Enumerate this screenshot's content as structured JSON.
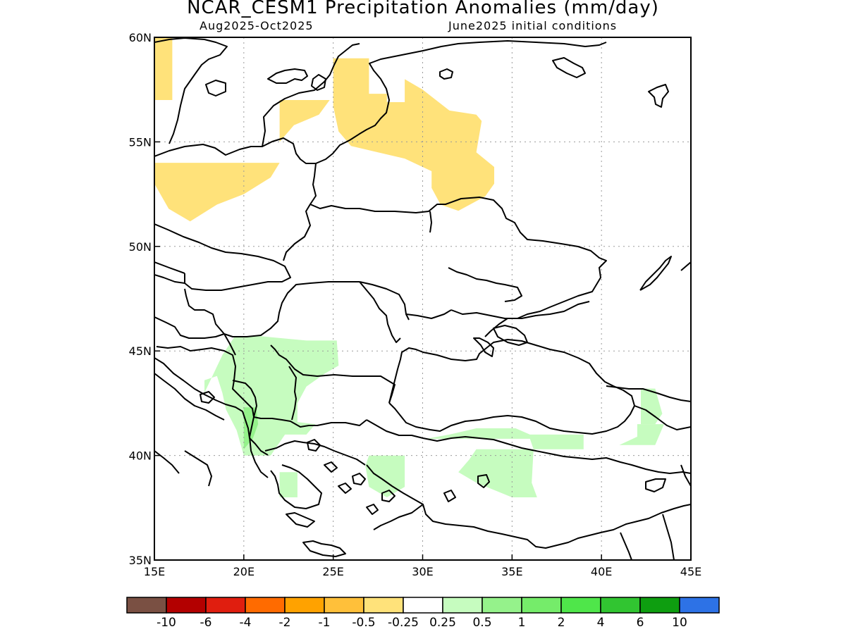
{
  "title": "NCAR_CESM1 Precipitation Anomalies (mm/day)",
  "subtitle_left": "Aug2025-Oct2025",
  "subtitle_right": "June2025 initial conditions",
  "axes": {
    "lon_ticks": [
      "15E",
      "20E",
      "25E",
      "30E",
      "35E",
      "40E",
      "45E"
    ],
    "lat_ticks": [
      "60N",
      "55N",
      "50N",
      "45N",
      "40N",
      "35N"
    ],
    "lon_range": [
      15,
      45
    ],
    "lat_range": [
      35,
      60
    ],
    "grid": "dotted"
  },
  "colorbar": {
    "colors": [
      "#7a5043",
      "#b30000",
      "#e01e0f",
      "#ff6b00",
      "#ffa200",
      "#ffc03a",
      "#ffe27a",
      "#ffffff",
      "#c6fcbf",
      "#95f28b",
      "#75ec6a",
      "#4fe64a",
      "#31c531",
      "#0e9e10",
      "#2d72e6"
    ],
    "labels": [
      "-10",
      "-6",
      "-4",
      "-2",
      "-1",
      "-0.5",
      "-0.25",
      "0.25",
      "0.5",
      "1",
      "2",
      "4",
      "6",
      "10"
    ]
  },
  "anomaly_regions": [
    {
      "category": "-0.5 to -0.25",
      "color": "#ffe27a",
      "pts": [
        [
          15,
          60
        ],
        [
          16,
          60
        ],
        [
          16,
          57
        ],
        [
          15,
          57
        ]
      ]
    },
    {
      "category": "-0.5 to -0.25",
      "color": "#ffe27a",
      "pts": [
        [
          15,
          54
        ],
        [
          22,
          54
        ],
        [
          21.5,
          53.3
        ],
        [
          20,
          52.5
        ],
        [
          18.5,
          52
        ],
        [
          17,
          51.2
        ],
        [
          15.8,
          51.8
        ],
        [
          15,
          53
        ]
      ]
    },
    {
      "category": "-0.5 to -0.25",
      "color": "#ffe27a",
      "pts": [
        [
          22,
          57
        ],
        [
          24.8,
          57
        ],
        [
          24.2,
          56.3
        ],
        [
          22.8,
          55.8
        ],
        [
          22,
          55
        ]
      ]
    },
    {
      "category": "-0.5 to -0.25",
      "color": "#ffe27a",
      "pts": [
        [
          25,
          59
        ],
        [
          27,
          59
        ],
        [
          27,
          57.3
        ],
        [
          28,
          57.3
        ],
        [
          28,
          56.9
        ],
        [
          29,
          56.9
        ],
        [
          29,
          58
        ],
        [
          30,
          57.5
        ],
        [
          31.5,
          56.5
        ],
        [
          33,
          56.3
        ],
        [
          33.3,
          56
        ],
        [
          33,
          54.5
        ],
        [
          34,
          53.8
        ],
        [
          34,
          53
        ],
        [
          33.5,
          52.4
        ],
        [
          32,
          51.7
        ],
        [
          31,
          52
        ],
        [
          30.5,
          52.8
        ],
        [
          30.5,
          53.6
        ],
        [
          29,
          54.2
        ],
        [
          27.5,
          54.5
        ],
        [
          26,
          54.8
        ],
        [
          25.3,
          55.5
        ],
        [
          25,
          56.7
        ]
      ]
    },
    {
      "category": "0.25 to 0.5",
      "color": "#c6fcbf",
      "pts": [
        [
          18.8,
          44.8
        ],
        [
          19.5,
          45.7
        ],
        [
          21,
          45.7
        ],
        [
          23.5,
          45.5
        ],
        [
          25.2,
          45.5
        ],
        [
          25.3,
          44.3
        ],
        [
          24.5,
          43.9
        ],
        [
          23.5,
          43.3
        ],
        [
          23,
          42.5
        ],
        [
          23,
          41.6
        ],
        [
          24,
          41.5
        ],
        [
          23.5,
          41
        ],
        [
          22.3,
          41
        ],
        [
          21.5,
          40
        ],
        [
          20,
          40
        ],
        [
          19.6,
          41.2
        ],
        [
          19,
          42.2
        ],
        [
          18.8,
          43
        ],
        [
          18.5,
          43.8
        ],
        [
          17.8,
          43.6
        ],
        [
          17.8,
          43
        ]
      ]
    },
    {
      "category": "0.5 to 1",
      "color": "#95f28b",
      "pts": [
        [
          20,
          42.3
        ],
        [
          20.7,
          42.3
        ],
        [
          20.8,
          41.5
        ],
        [
          20.5,
          40.8
        ],
        [
          20,
          40.3
        ]
      ]
    },
    {
      "category": "0.25 to 0.5",
      "color": "#c6fcbf",
      "pts": [
        [
          22,
          39.2
        ],
        [
          23,
          39.2
        ],
        [
          23,
          38
        ],
        [
          22,
          38
        ]
      ]
    },
    {
      "category": "0.25 to 0.5",
      "color": "#c6fcbf",
      "pts": [
        [
          27,
          40
        ],
        [
          29,
          40
        ],
        [
          29,
          38.5
        ],
        [
          28,
          38
        ],
        [
          27,
          38.5
        ],
        [
          26.8,
          39.5
        ]
      ]
    },
    {
      "category": "0.25 to 0.5",
      "color": "#c6fcbf",
      "pts": [
        [
          30.2,
          40.8
        ],
        [
          36,
          40.8
        ],
        [
          36.2,
          40.3
        ],
        [
          39,
          40.3
        ],
        [
          39,
          41
        ],
        [
          36,
          41
        ],
        [
          35.2,
          41.3
        ],
        [
          33,
          41.3
        ],
        [
          31.5,
          41
        ],
        [
          30.2,
          40.8
        ]
      ]
    },
    {
      "category": "0.25 to 0.5",
      "color": "#c6fcbf",
      "pts": [
        [
          33,
          40.3
        ],
        [
          36.2,
          40.3
        ],
        [
          36.1,
          38.7
        ],
        [
          36.4,
          38
        ],
        [
          35,
          38
        ],
        [
          33,
          38.7
        ],
        [
          32,
          39.2
        ],
        [
          32.6,
          39.8
        ]
      ]
    },
    {
      "category": "0.25 to 0.5",
      "color": "#c6fcbf",
      "pts": [
        [
          42,
          41.5
        ],
        [
          43.5,
          41.5
        ],
        [
          43,
          40.5
        ],
        [
          41,
          40.5
        ],
        [
          42,
          40.9
        ]
      ]
    },
    {
      "category": "0.25 to 0.5",
      "color": "#c6fcbf",
      "pts": [
        [
          42.2,
          43.2
        ],
        [
          43,
          43.2
        ],
        [
          43.4,
          42
        ],
        [
          43,
          41.5
        ],
        [
          42.2,
          41.5
        ]
      ]
    }
  ]
}
